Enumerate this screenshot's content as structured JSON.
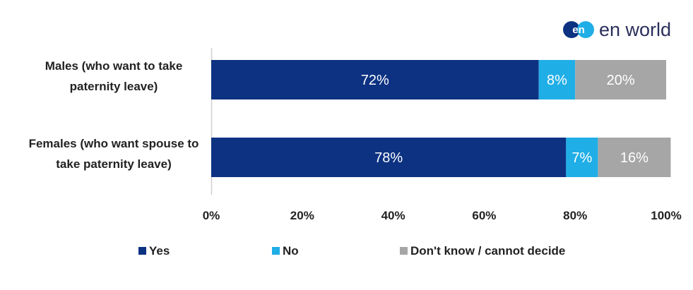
{
  "logo": {
    "text": "en world",
    "mark": "en"
  },
  "chart_data": {
    "type": "bar",
    "orientation": "horizontal",
    "stacked": true,
    "categories": [
      [
        "Males (who want to take",
        "paternity leave)"
      ],
      [
        "Females (who want spouse to",
        "take paternity leave)"
      ]
    ],
    "series": [
      {
        "name": "Yes",
        "values": [
          72,
          78
        ],
        "labels": [
          "72%",
          "78%"
        ],
        "color": "#0d3282"
      },
      {
        "name": "No",
        "values": [
          8,
          7
        ],
        "labels": [
          "8%",
          "7%"
        ],
        "color": "#20aee6"
      },
      {
        "name": "Don't know / cannot decide",
        "values": [
          20,
          16
        ],
        "labels": [
          "20%",
          "16%"
        ],
        "color": "#a6a6a6"
      }
    ],
    "xlim": [
      0,
      100
    ],
    "xticks": [
      "0%",
      "20%",
      "40%",
      "60%",
      "80%",
      "100%"
    ],
    "grid": false,
    "legend": "bottom"
  }
}
